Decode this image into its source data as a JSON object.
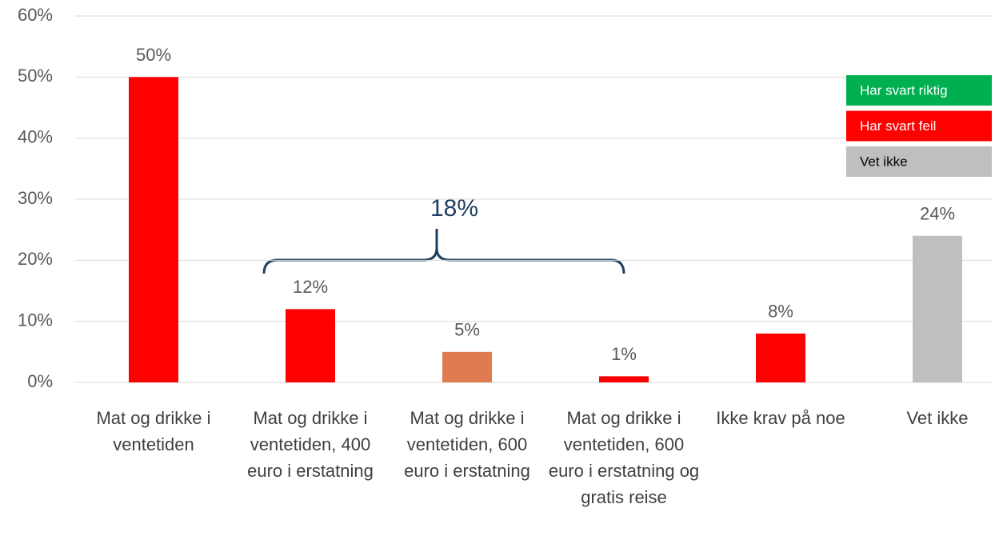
{
  "chart_data": {
    "type": "bar",
    "categories": [
      "Mat og drikke i ventetiden",
      "Mat og drikke i ventetiden, 400 euro i erstatning",
      "Mat og drikke i ventetiden, 600 euro i erstatning",
      "Mat og drikke i ventetiden, 600 euro i erstatning og gratis reise",
      "Ikke krav på noe",
      "Vet ikke"
    ],
    "values": [
      50,
      12,
      5,
      1,
      8,
      24
    ],
    "value_labels": [
      "50%",
      "12%",
      "5%",
      "1%",
      "8%",
      "24%"
    ],
    "colors": [
      "#ff0000",
      "#ff0000",
      "#e07b4f",
      "#ff0000",
      "#ff0000",
      "#bfbfbf"
    ],
    "ylim": [
      0,
      60
    ],
    "yticks": [
      {
        "value": 0,
        "label": "0%"
      },
      {
        "value": 10,
        "label": "10%"
      },
      {
        "value": 20,
        "label": "20%"
      },
      {
        "value": 30,
        "label": "30%"
      },
      {
        "value": 40,
        "label": "40%"
      },
      {
        "value": 50,
        "label": "50%"
      },
      {
        "value": 60,
        "label": "60%"
      }
    ],
    "grid": true,
    "legend": [
      {
        "label": "Har svart riktig",
        "color": "#00b050"
      },
      {
        "label": "Har svart feil",
        "color": "#ff0000"
      },
      {
        "label": "Vet ikke",
        "color": "#bfbfbf"
      }
    ],
    "annotation": "18%"
  }
}
